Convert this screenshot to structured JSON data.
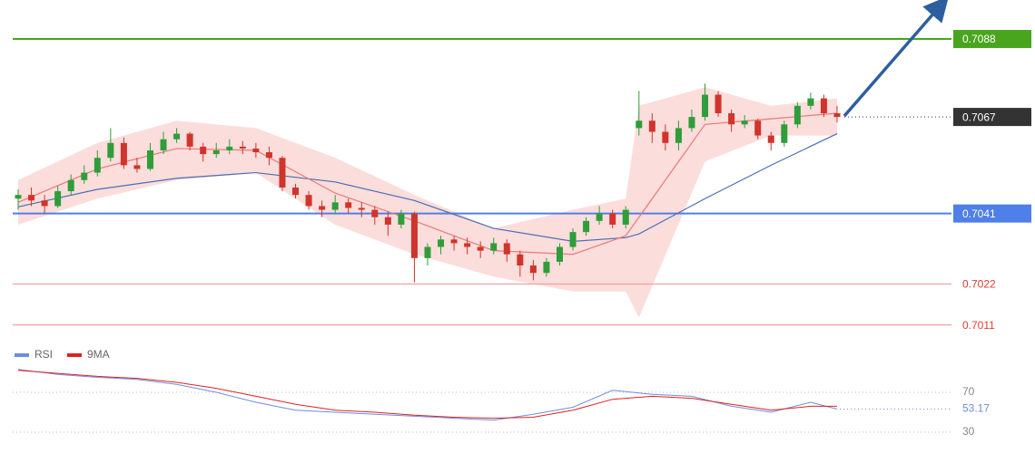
{
  "chart_data": {
    "type": "candlestick",
    "ylim": [
      0.7007,
      0.70985
    ],
    "bull_color": "#2f9d3a",
    "bear_color": "#d0342c",
    "ohlc": [
      [
        0.7045,
        0.70475,
        0.7042,
        0.7046
      ],
      [
        0.7046,
        0.7048,
        0.7043,
        0.70445
      ],
      [
        0.70445,
        0.7046,
        0.7041,
        0.7043
      ],
      [
        0.7043,
        0.70485,
        0.70425,
        0.7047
      ],
      [
        0.7047,
        0.70515,
        0.7046,
        0.705
      ],
      [
        0.705,
        0.7054,
        0.7049,
        0.7052
      ],
      [
        0.7052,
        0.7058,
        0.7051,
        0.7056
      ],
      [
        0.7056,
        0.7064,
        0.7055,
        0.706
      ],
      [
        0.706,
        0.70615,
        0.7053,
        0.7054
      ],
      [
        0.7054,
        0.7056,
        0.7052,
        0.7053
      ],
      [
        0.7053,
        0.706,
        0.70525,
        0.7058
      ],
      [
        0.7058,
        0.7063,
        0.7057,
        0.7061
      ],
      [
        0.7061,
        0.7064,
        0.706,
        0.70625
      ],
      [
        0.70625,
        0.7063,
        0.7058,
        0.7059
      ],
      [
        0.7059,
        0.706,
        0.7055,
        0.7057
      ],
      [
        0.7057,
        0.706,
        0.7056,
        0.7058
      ],
      [
        0.7058,
        0.7061,
        0.7057,
        0.7059
      ],
      [
        0.7059,
        0.70605,
        0.7057,
        0.70585
      ],
      [
        0.70585,
        0.706,
        0.7056,
        0.70575
      ],
      [
        0.70575,
        0.7059,
        0.7054,
        0.7056
      ],
      [
        0.7056,
        0.70565,
        0.7047,
        0.7048
      ],
      [
        0.7048,
        0.7049,
        0.7045,
        0.7046
      ],
      [
        0.7046,
        0.7047,
        0.7042,
        0.7043
      ],
      [
        0.7043,
        0.70445,
        0.704,
        0.7042
      ],
      [
        0.7042,
        0.7046,
        0.7041,
        0.7044
      ],
      [
        0.7044,
        0.7045,
        0.7041,
        0.70425
      ],
      [
        0.70425,
        0.7044,
        0.704,
        0.7042
      ],
      [
        0.7042,
        0.7043,
        0.7038,
        0.704
      ],
      [
        0.704,
        0.70415,
        0.7035,
        0.7038
      ],
      [
        0.7038,
        0.7042,
        0.7037,
        0.7041
      ],
      [
        0.7041,
        0.70415,
        0.70225,
        0.7029
      ],
      [
        0.7029,
        0.7033,
        0.7027,
        0.7032
      ],
      [
        0.7032,
        0.7035,
        0.703,
        0.7034
      ],
      [
        0.7034,
        0.7035,
        0.7031,
        0.7033
      ],
      [
        0.7033,
        0.70345,
        0.703,
        0.7032
      ],
      [
        0.7032,
        0.70335,
        0.7029,
        0.7031
      ],
      [
        0.7031,
        0.70345,
        0.703,
        0.7033
      ],
      [
        0.7033,
        0.7034,
        0.7028,
        0.703
      ],
      [
        0.703,
        0.7031,
        0.7024,
        0.7027
      ],
      [
        0.7027,
        0.70285,
        0.7023,
        0.7025
      ],
      [
        0.7025,
        0.7029,
        0.7024,
        0.7028
      ],
      [
        0.7028,
        0.7033,
        0.7027,
        0.7032
      ],
      [
        0.7032,
        0.7037,
        0.7031,
        0.7036
      ],
      [
        0.7036,
        0.704,
        0.7035,
        0.7039
      ],
      [
        0.7039,
        0.7043,
        0.7038,
        0.7041
      ],
      [
        0.7041,
        0.7042,
        0.7037,
        0.7038
      ],
      [
        0.7038,
        0.7043,
        0.7037,
        0.7042
      ],
      [
        0.7064,
        0.7074,
        0.7062,
        0.7066
      ],
      [
        0.7066,
        0.7068,
        0.706,
        0.7063
      ],
      [
        0.7063,
        0.7065,
        0.7058,
        0.706
      ],
      [
        0.706,
        0.7066,
        0.7058,
        0.7064
      ],
      [
        0.7064,
        0.7069,
        0.7063,
        0.7067
      ],
      [
        0.7067,
        0.7076,
        0.7066,
        0.7073
      ],
      [
        0.7073,
        0.7074,
        0.7067,
        0.7068
      ],
      [
        0.7068,
        0.7069,
        0.7063,
        0.7065
      ],
      [
        0.7065,
        0.70675,
        0.7064,
        0.7066
      ],
      [
        0.7066,
        0.70665,
        0.7061,
        0.7062
      ],
      [
        0.7062,
        0.7063,
        0.7058,
        0.706
      ],
      [
        0.706,
        0.7066,
        0.7059,
        0.7065
      ],
      [
        0.7065,
        0.7071,
        0.7064,
        0.707
      ],
      [
        0.707,
        0.70735,
        0.7069,
        0.7072
      ],
      [
        0.7072,
        0.7073,
        0.7067,
        0.7068
      ],
      [
        0.7068,
        0.707,
        0.70655,
        0.7067
      ]
    ],
    "overlays": {
      "x": [
        0,
        6,
        12,
        18,
        24,
        30,
        36,
        42,
        46,
        47,
        52,
        57,
        62
      ],
      "slow_ma": {
        "color": "#4a6fb5",
        "values": [
          0.70428,
          0.70475,
          0.70505,
          0.7052,
          0.70495,
          0.70445,
          0.7037,
          0.70335,
          0.70345,
          0.70355,
          0.7045,
          0.7054,
          0.70625
        ]
      },
      "fast_ma": {
        "color": "#e87a7a",
        "values": [
          0.7044,
          0.7053,
          0.70585,
          0.7058,
          0.70465,
          0.7039,
          0.7031,
          0.703,
          0.7035,
          0.704,
          0.7065,
          0.70665,
          0.7068
        ]
      },
      "band": {
        "color": "#f6b3b0",
        "upper": [
          0.705,
          0.706,
          0.7066,
          0.7064,
          0.7056,
          0.7046,
          0.7037,
          0.7042,
          0.7045,
          0.707,
          0.7075,
          0.707,
          0.7072
        ],
        "lower": [
          0.7038,
          0.7045,
          0.705,
          0.7052,
          0.7038,
          0.703,
          0.7024,
          0.702,
          0.702,
          0.7013,
          0.7055,
          0.7062,
          0.7062
        ]
      }
    },
    "levels": [
      {
        "value": 0.7088,
        "color": "#4aa51e",
        "line_style": "solid",
        "label_box": true
      },
      {
        "value": 0.7067,
        "color": "#333333",
        "line_style": "dotted",
        "label_box": true
      },
      {
        "value": 0.7041,
        "color": "#4f7fe8",
        "line_style": "solid",
        "label_box": true
      },
      {
        "value": 0.7022,
        "color": "#f4a0a0",
        "line_style": "solid",
        "label_box": false,
        "text_color": "#e53935"
      },
      {
        "value": 0.7011,
        "color": "#f4a0a0",
        "line_style": "solid",
        "label_box": false,
        "text_color": "#e53935"
      }
    ],
    "rsi": {
      "ylim": [
        14,
        96
      ],
      "yticks": [
        70,
        30
      ],
      "last": 53.17,
      "x": [
        0,
        3,
        6,
        9,
        12,
        15,
        18,
        21,
        24,
        27,
        30,
        33,
        36,
        39,
        42,
        45,
        48,
        51,
        54,
        57,
        60,
        62
      ],
      "series": [
        {
          "name": "RSI",
          "color": "#6c8ee0",
          "values": [
            93,
            88,
            85,
            83,
            78,
            70,
            60,
            52,
            50,
            48,
            46,
            44,
            42,
            48,
            55,
            72,
            68,
            66,
            56,
            50,
            60,
            53.17
          ]
        },
        {
          "name": "9MA",
          "color": "#e02020",
          "values": [
            92,
            89,
            86,
            84,
            80,
            74,
            66,
            58,
            52,
            50,
            47,
            45,
            44,
            45,
            52,
            63,
            66,
            64,
            58,
            52,
            56,
            56
          ]
        }
      ]
    }
  }
}
